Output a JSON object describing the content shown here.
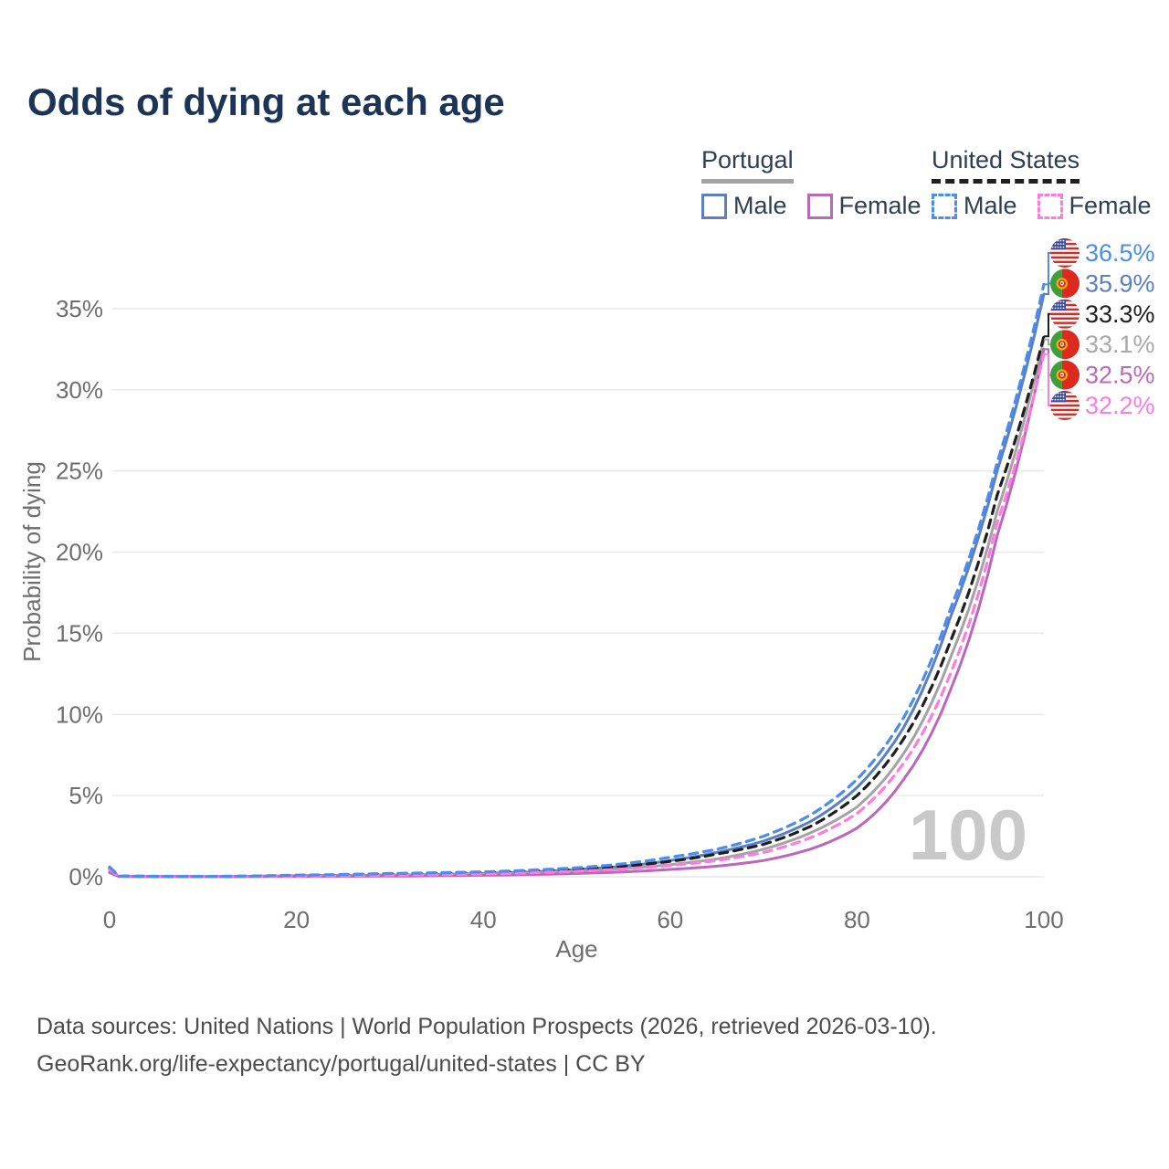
{
  "title": "Odds of dying at each age",
  "colors": {
    "title": "#1c3557",
    "legend_text": "#2e3f54",
    "axis_text": "#6e6e6e",
    "grid": "#e9e9e9",
    "watermark": "#c9c9c9",
    "footer_text": "#4c4c4c"
  },
  "legend": {
    "groups": [
      {
        "label": "Portugal",
        "underline_style": "solid",
        "underline_color": "#a3a3a3",
        "items": [
          {
            "label": "Male",
            "color": "#5b7fc4",
            "dashed": false
          },
          {
            "label": "Female",
            "color": "#bc66bc",
            "dashed": false
          }
        ]
      },
      {
        "label": "United States",
        "underline_style": "dashed",
        "underline_color": "#1f1f1f",
        "items": [
          {
            "label": "Male",
            "color": "#4a8df0",
            "dashed": true
          },
          {
            "label": "Female",
            "color": "#ff7be0",
            "dashed": true
          }
        ]
      }
    ]
  },
  "chart_data": {
    "type": "line",
    "title": "Odds of dying at each age",
    "xlabel": "Age",
    "ylabel": "Probability of dying",
    "x_ticks": [
      0,
      20,
      40,
      60,
      80,
      100
    ],
    "y_ticks": [
      "0%",
      "5%",
      "10%",
      "15%",
      "20%",
      "25%",
      "30%",
      "35%"
    ],
    "xlim": [
      0,
      100
    ],
    "ylim_percent": [
      0,
      38
    ],
    "grid": "horizontal-only",
    "legend_position": "top-right",
    "watermark": "100",
    "key_ages": [
      0,
      1,
      10,
      20,
      30,
      40,
      50,
      55,
      60,
      65,
      70,
      75,
      80,
      85,
      90,
      95,
      100
    ],
    "series": [
      {
        "name": "Portugal Male",
        "flag": "pt",
        "dashed": false,
        "color": "#5b7fc4",
        "end_label": "35.9%",
        "label_color": "#5b7fc4",
        "end_value": 35.9,
        "values": [
          0.3,
          0.03,
          0.012,
          0.06,
          0.1,
          0.2,
          0.45,
          0.65,
          1.0,
          1.5,
          2.2,
          3.4,
          5.5,
          9.2,
          16.0,
          25.0,
          35.9
        ]
      },
      {
        "name": "Portugal Total",
        "flag": "pt",
        "dashed": false,
        "color": "#a3a3a3",
        "end_label": "33.1%",
        "label_color": "#a8a8a8",
        "end_value": 33.1,
        "values": [
          0.28,
          0.025,
          0.01,
          0.04,
          0.07,
          0.15,
          0.33,
          0.5,
          0.75,
          1.1,
          1.7,
          2.7,
          4.3,
          7.6,
          13.5,
          22.5,
          33.1
        ]
      },
      {
        "name": "Portugal Female",
        "flag": "pt",
        "dashed": false,
        "color": "#bc66bc",
        "end_label": "32.5%",
        "label_color": "#bc66bc",
        "end_value": 32.5,
        "values": [
          0.25,
          0.02,
          0.008,
          0.02,
          0.04,
          0.09,
          0.2,
          0.3,
          0.45,
          0.65,
          1.0,
          1.7,
          3.0,
          6.0,
          11.5,
          21.0,
          32.5
        ]
      },
      {
        "name": "United States Total",
        "flag": "us",
        "dashed": true,
        "color": "#1f1f1f",
        "end_label": "33.3%",
        "label_color": "#1f1f1f",
        "end_value": 33.3,
        "values": [
          0.5,
          0.035,
          0.016,
          0.07,
          0.15,
          0.24,
          0.45,
          0.65,
          0.95,
          1.4,
          2.0,
          3.1,
          5.0,
          8.5,
          14.5,
          23.5,
          33.3
        ]
      },
      {
        "name": "United States Female",
        "flag": "us",
        "dashed": true,
        "color": "#ff7be0",
        "end_label": "32.2%",
        "label_color": "#ff7be0",
        "end_value": 32.2,
        "values": [
          0.45,
          0.03,
          0.012,
          0.04,
          0.1,
          0.17,
          0.34,
          0.48,
          0.7,
          1.0,
          1.5,
          2.4,
          3.9,
          7.0,
          12.5,
          21.8,
          32.2
        ]
      },
      {
        "name": "United States Male",
        "flag": "us",
        "dashed": true,
        "color": "#4a8df0",
        "end_label": "36.5%",
        "label_color": "#4a8df0",
        "end_value": 36.5,
        "values": [
          0.6,
          0.04,
          0.02,
          0.1,
          0.2,
          0.3,
          0.55,
          0.8,
          1.2,
          1.7,
          2.5,
          3.8,
          6.0,
          9.8,
          16.5,
          25.5,
          36.5
        ]
      }
    ]
  },
  "footer": {
    "line1": "Data sources: United Nations | World Population Prospects (2026, retrieved 2026-03-10).",
    "line2": "GeoRank.org/life-expectancy/portugal/united-states | CC BY"
  }
}
